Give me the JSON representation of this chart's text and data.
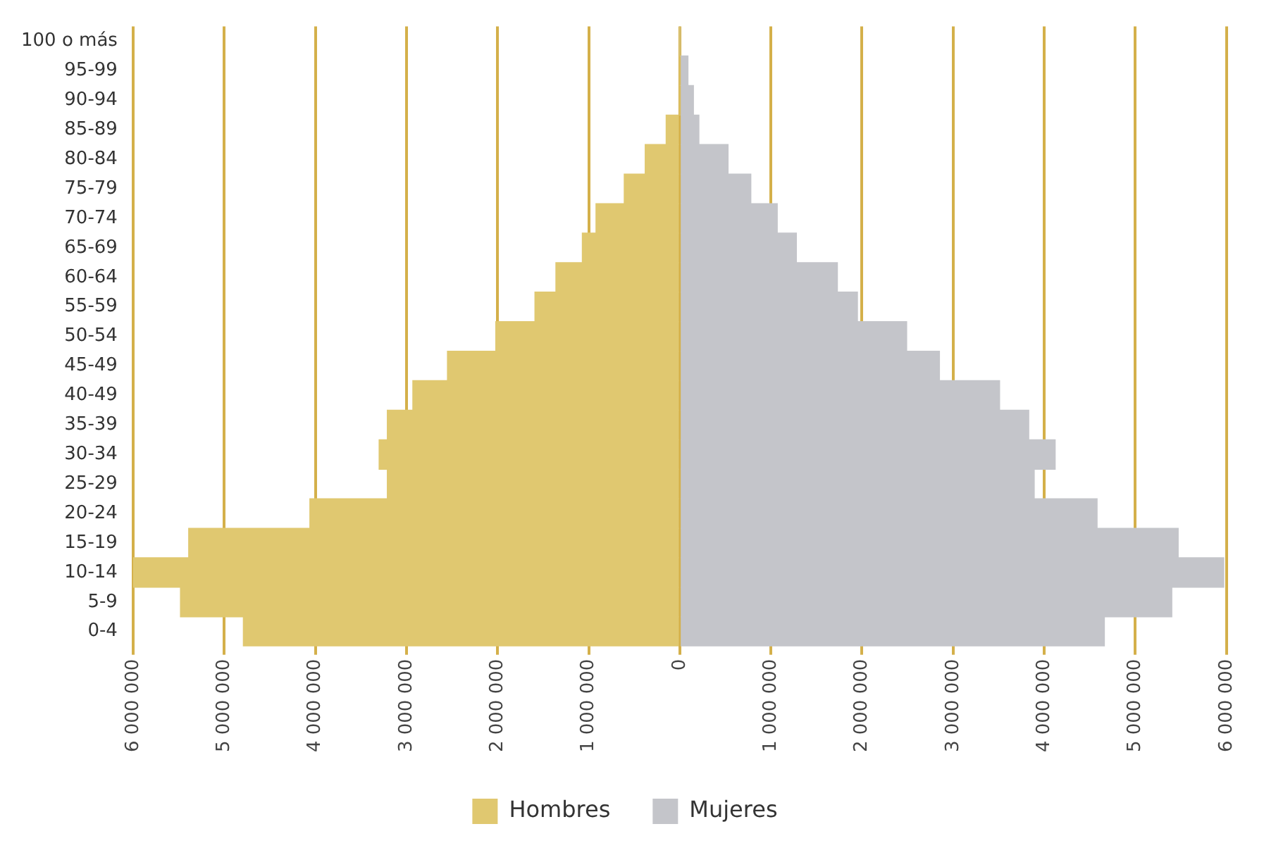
{
  "chart_data": {
    "type": "bar",
    "orientation": "horizontal",
    "stacked": true,
    "categories": [
      "100 o más",
      "95-99",
      "90-94",
      "85-89",
      "80-84",
      "75-79",
      "70-74",
      "65-69",
      "60-64",
      "55-59",
      "50-54",
      "45-49",
      "40-49",
      "35-39",
      "30-34",
      "25-29",
      "20-24",
      "15-19",
      "10-14",
      "5-9",
      "0-4"
    ],
    "series": [
      {
        "name": "Hombres",
        "color": "#e0c870",
        "values": [
          0,
          0,
          0,
          -150000,
          -380000,
          -610000,
          -920000,
          -1070000,
          -1360000,
          -1590000,
          -2020000,
          -2550000,
          -2930000,
          -3210000,
          -3300000,
          -3210000,
          -4060000,
          -5390000,
          -6000000,
          -5480000,
          -4790000
        ]
      },
      {
        "name": "Mujeres",
        "color": "#c4c5ca",
        "values": [
          0,
          90000,
          150000,
          210000,
          530000,
          780000,
          1070000,
          1280000,
          1730000,
          1950000,
          2490000,
          2850000,
          3510000,
          3830000,
          4120000,
          3890000,
          4580000,
          5470000,
          5970000,
          5400000,
          4660000
        ]
      }
    ],
    "xlim": [
      -6000000,
      6000000
    ],
    "xticks": [
      {
        "value": -6000000,
        "label": "6 000 000"
      },
      {
        "value": -5000000,
        "label": "5 000 000"
      },
      {
        "value": -4000000,
        "label": "4 000 000"
      },
      {
        "value": -3000000,
        "label": "3 000 000"
      },
      {
        "value": -2000000,
        "label": "2 000 000"
      },
      {
        "value": -1000000,
        "label": "1 000 000"
      },
      0,
      {
        "value": 1000000,
        "label": "1 000 000"
      },
      {
        "value": 2000000,
        "label": "2 000 000"
      },
      {
        "value": 3000000,
        "label": "3 000 000"
      },
      {
        "value": 4000000,
        "label": "4 000 000"
      },
      {
        "value": 5000000,
        "label": "5 000 000"
      },
      {
        "value": 6000000,
        "label": "6 000 000"
      }
    ],
    "grid": "x",
    "legend": "bottom"
  }
}
